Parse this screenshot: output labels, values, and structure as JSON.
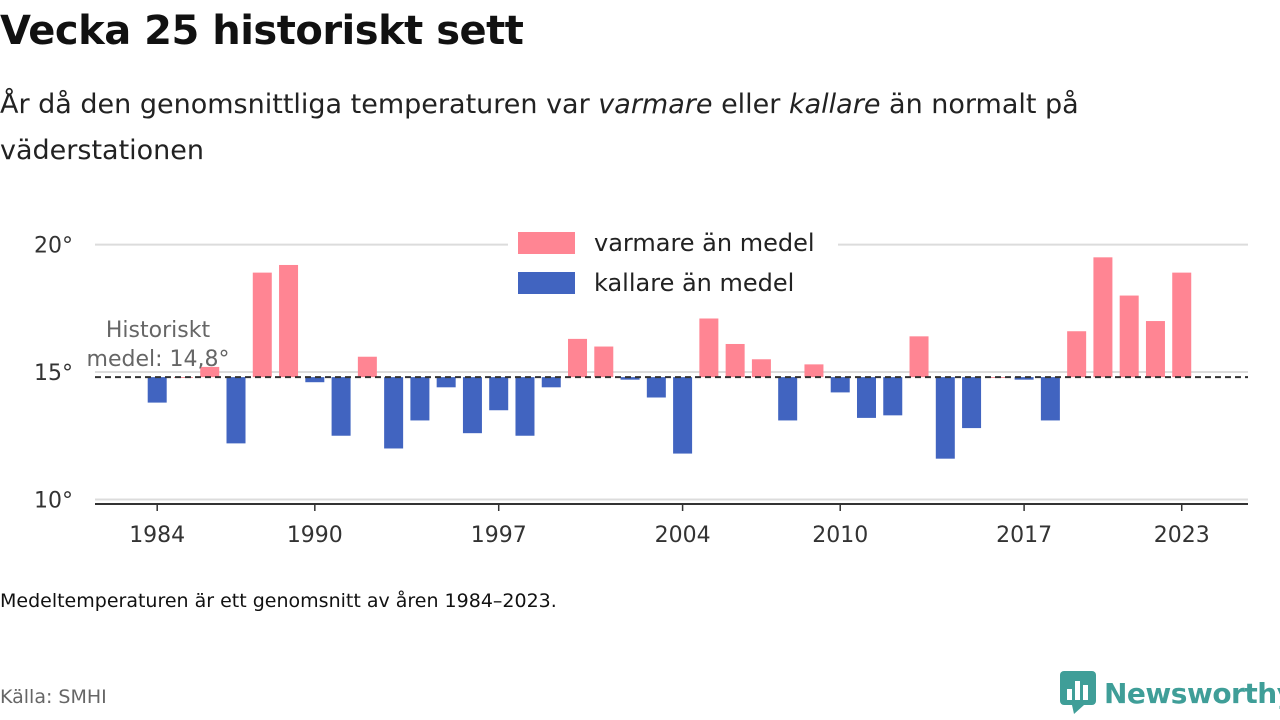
{
  "header": {
    "title": "Vecka 25 historiskt sett",
    "subtitle_pre": "År då den genomsnittliga temperaturen var ",
    "subtitle_warm": "varmare",
    "subtitle_mid": " eller ",
    "subtitle_cold": "kallare",
    "subtitle_post": " än normalt på väderstationen"
  },
  "footer": {
    "note": "Medeltemperaturen är ett genomsnitt av åren 1984–2023.",
    "source": "Källa: SMHI",
    "brand": "Newsworthy"
  },
  "colors": {
    "warm": "#ff8593",
    "cold": "#4164c0",
    "brand": "#3f9e98"
  },
  "chart_data": {
    "type": "bar",
    "x": [
      1984,
      1985,
      1986,
      1987,
      1988,
      1989,
      1990,
      1991,
      1992,
      1993,
      1994,
      1995,
      1996,
      1997,
      1998,
      1999,
      2000,
      2001,
      2002,
      2003,
      2004,
      2005,
      2006,
      2007,
      2008,
      2009,
      2010,
      2011,
      2012,
      2013,
      2014,
      2015,
      2016,
      2017,
      2018,
      2019,
      2020,
      2021,
      2022,
      2023
    ],
    "values": [
      13.8,
      14.8,
      15.2,
      12.2,
      18.9,
      19.2,
      14.6,
      12.5,
      15.6,
      12.0,
      13.1,
      14.4,
      12.6,
      13.5,
      12.5,
      14.4,
      16.3,
      16.0,
      14.7,
      14.0,
      11.8,
      17.1,
      16.1,
      15.5,
      13.1,
      15.3,
      14.2,
      13.2,
      13.3,
      16.4,
      11.6,
      12.8,
      14.8,
      14.7,
      13.1,
      16.6,
      19.5,
      18.0,
      17.0,
      18.9
    ],
    "baseline": 14.8,
    "baseline_label_line1": "Historiskt",
    "baseline_label_line2": "medel: 14,8°",
    "y_ticks": [
      10,
      15,
      20
    ],
    "y_tick_labels": [
      "10°",
      "15°",
      "20°"
    ],
    "ylim": [
      9.9,
      21.2
    ],
    "x_ticks": [
      1984,
      1990,
      1997,
      2004,
      2010,
      2017,
      2023
    ],
    "x_tick_labels": [
      "1984",
      "1990",
      "1997",
      "2004",
      "2010",
      "2017",
      "2023"
    ],
    "legend": [
      {
        "name": "varmare än medel",
        "color": "#ff8593"
      },
      {
        "name": "kallare än medel",
        "color": "#4164c0"
      }
    ],
    "legend_position": "top-center",
    "grid": true
  }
}
